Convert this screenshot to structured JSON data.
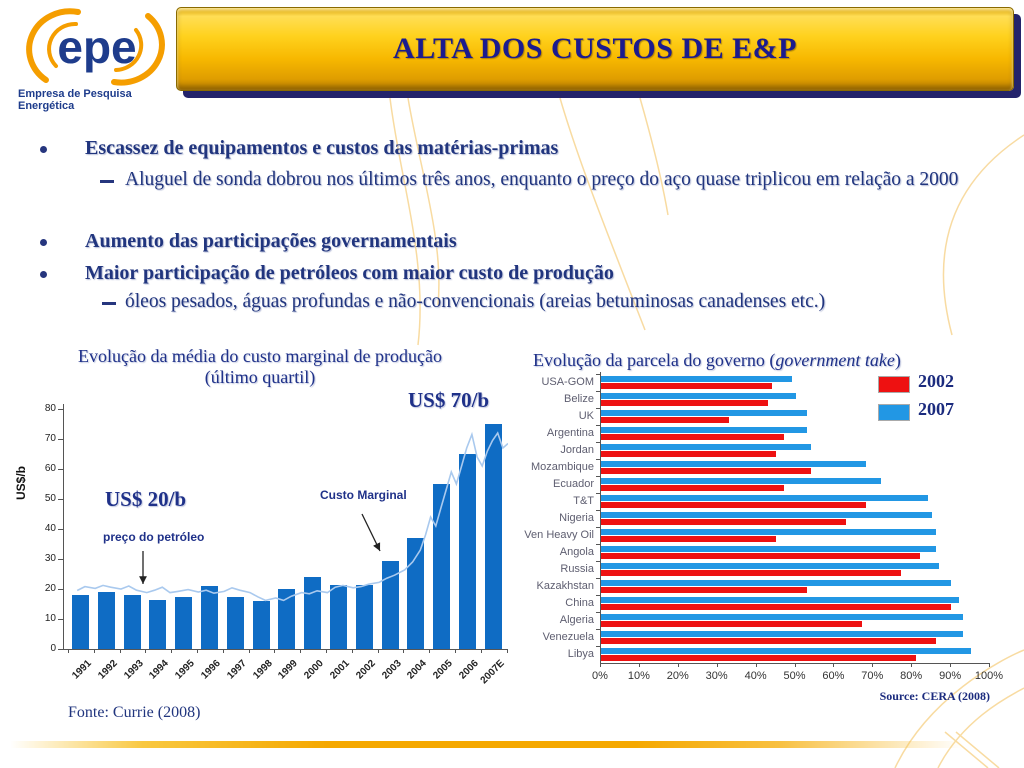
{
  "slide": {
    "logo": {
      "text": "epe",
      "subtitle": "Empresa de Pesquisa Energética"
    },
    "header": {
      "title": "ALTA DOS CUSTOS DE E&P"
    },
    "bullets": [
      {
        "level": 1,
        "text": "Escassez de equipamentos e custos das matérias-primas"
      },
      {
        "level": 2,
        "text": "Aluguel de sonda dobrou nos últimos três anos, enquanto o preço do aço quase triplicou em relação a 2000"
      },
      {
        "level": 1,
        "text": "Aumento das participações governamentais"
      },
      {
        "level": 1,
        "text": "Maior participação de petróleos com maior custo de produção"
      },
      {
        "level": 2,
        "text": "óleos pesados, águas profundas e não-convencionais (areias betuminosas canadenses etc.)"
      }
    ],
    "footer_source": "Fonte: Currie (2008)"
  },
  "chart_data": [
    {
      "type": "bar",
      "title_line1": "Evolução da média do custo marginal de produção",
      "title_line2": "(último quartil)",
      "ylabel": "US$/b",
      "ylim": [
        0,
        80
      ],
      "yticks": [
        0,
        10,
        20,
        30,
        40,
        50,
        60,
        70,
        80
      ],
      "grid": false,
      "categories": [
        "1991",
        "1992",
        "1993",
        "1994",
        "1995",
        "1996",
        "1997",
        "1998",
        "1999",
        "2000",
        "2001",
        "2002",
        "2003",
        "2004",
        "2005",
        "2006",
        "2007E"
      ],
      "series": [
        {
          "name": "Custo Marginal",
          "type": "bar",
          "color": "#0F6CC4",
          "values": [
            18,
            19,
            18,
            16.5,
            17.5,
            21,
            17.5,
            16,
            20,
            24,
            21.5,
            21.5,
            29.5,
            37,
            55,
            65,
            75
          ]
        },
        {
          "name": "preço do petróleo",
          "type": "line",
          "color": "#A9C9EE",
          "points": [
            [
              0.2,
              19.5
            ],
            [
              0.5,
              20.8
            ],
            [
              0.9,
              20.2
            ],
            [
              1.2,
              21.2
            ],
            [
              1.5,
              20.6
            ],
            [
              1.9,
              20
            ],
            [
              2.2,
              21
            ],
            [
              2.5,
              19.6
            ],
            [
              2.9,
              18.8
            ],
            [
              3.2,
              19.6
            ],
            [
              3.5,
              20.6
            ],
            [
              3.8,
              18.8
            ],
            [
              4.1,
              19.2
            ],
            [
              4.5,
              19.8
            ],
            [
              4.9,
              19
            ],
            [
              5.2,
              19.6
            ],
            [
              5.5,
              18.6
            ],
            [
              5.9,
              19.2
            ],
            [
              6.2,
              20.4
            ],
            [
              6.5,
              19.6
            ],
            [
              6.9,
              18.8
            ],
            [
              7.2,
              17.4
            ],
            [
              7.5,
              16.2
            ],
            [
              7.9,
              17
            ],
            [
              8.2,
              16.2
            ],
            [
              8.5,
              17.6
            ],
            [
              8.9,
              18.8
            ],
            [
              9.2,
              18.4
            ],
            [
              9.5,
              19.4
            ],
            [
              9.9,
              18.8
            ],
            [
              10.2,
              20.6
            ],
            [
              10.5,
              21.2
            ],
            [
              10.9,
              20.4
            ],
            [
              11.2,
              20.8
            ],
            [
              11.5,
              21.6
            ],
            [
              11.9,
              22.2
            ],
            [
              12.2,
              23.6
            ],
            [
              12.5,
              24.6
            ],
            [
              12.9,
              26.4
            ],
            [
              13.2,
              29
            ],
            [
              13.5,
              33
            ],
            [
              13.7,
              38
            ],
            [
              13.9,
              44
            ],
            [
              14.1,
              41
            ],
            [
              14.3,
              47
            ],
            [
              14.5,
              53
            ],
            [
              14.7,
              59
            ],
            [
              14.9,
              55
            ],
            [
              15.1,
              61
            ],
            [
              15.3,
              67
            ],
            [
              15.5,
              71.5
            ],
            [
              15.7,
              64
            ],
            [
              15.9,
              61
            ],
            [
              16.1,
              66
            ],
            [
              16.3,
              69.5
            ],
            [
              16.5,
              72
            ],
            [
              16.7,
              67
            ],
            [
              16.9,
              68.5
            ]
          ]
        }
      ],
      "annotations": {
        "price_low": "US$ 20/b",
        "price_high": "US$ 70/b",
        "line_label": "preço do petróleo",
        "bar_label": "Custo Marginal"
      }
    },
    {
      "type": "bar",
      "orientation": "horizontal",
      "title_prefix": "Evolução da parcela do governo (",
      "title_italic": "government take",
      "title_suffix": ")",
      "xlim": [
        0,
        100
      ],
      "xticks": [
        "0%",
        "10%",
        "20%",
        "30%",
        "40%",
        "50%",
        "60%",
        "70%",
        "80%",
        "90%",
        "100%"
      ],
      "legend_position": "top-right",
      "categories": [
        "USA-GOM",
        "Belize",
        "UK",
        "Argentina",
        "Jordan",
        "Mozambique",
        "Ecuador",
        "T&T",
        "Nigeria",
        "Ven Heavy Oil",
        "Angola",
        "Russia",
        "Kazakhstan",
        "China",
        "Algeria",
        "Venezuela",
        "Libya"
      ],
      "series": [
        {
          "name": "2002",
          "color": "#EE1111",
          "values": [
            44,
            43,
            33,
            47,
            45,
            54,
            47,
            68,
            63,
            45,
            82,
            77,
            53,
            90,
            67,
            86,
            81
          ]
        },
        {
          "name": "2007",
          "color": "#2297E4",
          "values": [
            49,
            50,
            53,
            53,
            54,
            68,
            72,
            84,
            85,
            86,
            86,
            87,
            90,
            92,
            93,
            93,
            95
          ]
        }
      ],
      "source": "Source: CERA (2008)"
    }
  ]
}
